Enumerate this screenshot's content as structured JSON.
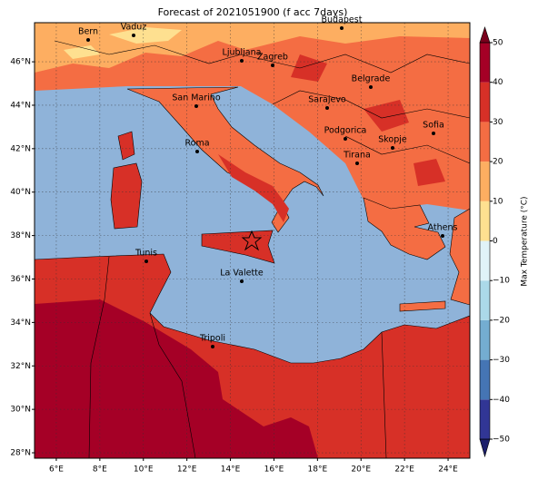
{
  "title": "Forecast of 2021051900 (f acc 7days)",
  "map": {
    "xlim": [
      5,
      25
    ],
    "ylim": [
      27.75,
      47.8
    ],
    "xticks": [
      {
        "value": 6,
        "label": "6°E"
      },
      {
        "value": 8,
        "label": "8°E"
      },
      {
        "value": 10,
        "label": "10°E"
      },
      {
        "value": 12,
        "label": "12°E"
      },
      {
        "value": 14,
        "label": "14°E"
      },
      {
        "value": 16,
        "label": "16°E"
      },
      {
        "value": 18,
        "label": "18°E"
      },
      {
        "value": 20,
        "label": "20°E"
      },
      {
        "value": 22,
        "label": "22°E"
      },
      {
        "value": 24,
        "label": "24°E"
      }
    ],
    "yticks": [
      {
        "value": 28,
        "label": "28°N"
      },
      {
        "value": 30,
        "label": "30°N"
      },
      {
        "value": 32,
        "label": "32°N"
      },
      {
        "value": 34,
        "label": "34°N"
      },
      {
        "value": 36,
        "label": "36°N"
      },
      {
        "value": 38,
        "label": "38°N"
      },
      {
        "value": 40,
        "label": "40°N"
      },
      {
        "value": 42,
        "label": "42°N"
      },
      {
        "value": 44,
        "label": "44°N"
      },
      {
        "value": 46,
        "label": "46°N"
      }
    ],
    "grid": true,
    "cities": [
      "Bern",
      "Vaduz",
      "Budapest",
      "Ljubljana",
      "Zagreb",
      "Belgrade",
      "San Marino",
      "Sarajevo",
      "Sofia",
      "Podgorica",
      "Skopje",
      "Roma",
      "Tirana",
      "Athens",
      "Tunis",
      "La Valette",
      "Tripoli"
    ]
  },
  "colorbar": {
    "label": "Max Temperature (°C)",
    "lim": [
      -50,
      50
    ],
    "ticks": [
      {
        "value": -50,
        "label": "−50"
      },
      {
        "value": -40,
        "label": "−40"
      },
      {
        "value": -30,
        "label": "−30"
      },
      {
        "value": -20,
        "label": "−20"
      },
      {
        "value": -10,
        "label": "−10"
      },
      0,
      10,
      20,
      30,
      40,
      50
    ],
    "colors": [
      "#313695",
      "#4575b4",
      "#74add1",
      "#abd9e9",
      "#e0f3f8",
      "#fee090",
      "#fdae61",
      "#f46d43",
      "#d73027",
      "#a50026"
    ],
    "extend_colors": [
      "#1c1f6b",
      "#7a001c"
    ]
  }
}
